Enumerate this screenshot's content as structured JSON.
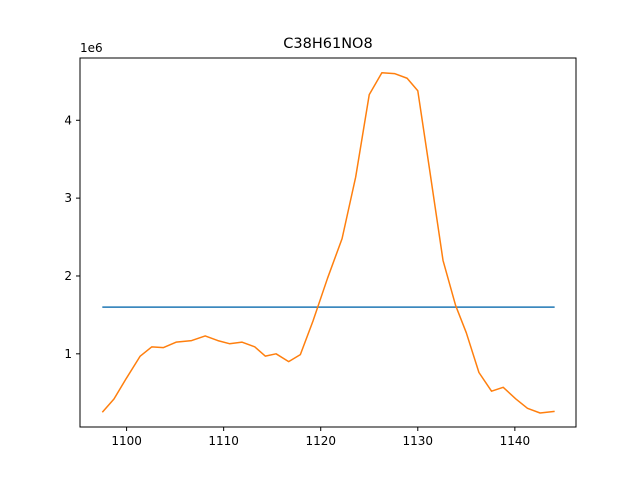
{
  "chart_data": {
    "type": "line",
    "title": "C38H61NO8",
    "xlabel": "",
    "ylabel": "",
    "y_offset_label": "1e6",
    "xlim": [
      1095.2,
      1146.3
    ],
    "ylim": [
      60000,
      4800000
    ],
    "grid": false,
    "x_ticks": [
      {
        "value": 1100,
        "label": "1100"
      },
      {
        "value": 1110,
        "label": "1110"
      },
      {
        "value": 1120,
        "label": "1120"
      },
      {
        "value": 1130,
        "label": "1130"
      },
      {
        "value": 1140,
        "label": "1140"
      }
    ],
    "y_ticks": [
      {
        "value": 1000000,
        "label": "1"
      },
      {
        "value": 2000000,
        "label": "2"
      },
      {
        "value": 3000000,
        "label": "3"
      },
      {
        "value": 4000000,
        "label": "4"
      }
    ],
    "series": [
      {
        "color": "#1f77b4",
        "x": [
          1097.5,
          1144.1
        ],
        "y": [
          1600000,
          1600000
        ]
      },
      {
        "color": "#ff7f0e",
        "x": [
          1097.5,
          1098.7,
          1099.9,
          1101.4,
          1102.6,
          1103.8,
          1105.1,
          1106.7,
          1108.1,
          1109.4,
          1110.6,
          1111.9,
          1113.2,
          1114.3,
          1115.4,
          1116.7,
          1117.9,
          1119.2,
          1120.7,
          1122.2,
          1123.6,
          1125.0,
          1126.3,
          1127.6,
          1128.9,
          1130.0,
          1131.2,
          1132.6,
          1133.9,
          1135.0,
          1136.3,
          1137.6,
          1138.8,
          1140.1,
          1141.3,
          1142.6,
          1144.1
        ],
        "y": [
          250000,
          420000,
          670000,
          970000,
          1090000,
          1080000,
          1150000,
          1170000,
          1230000,
          1170000,
          1130000,
          1150000,
          1090000,
          970000,
          1000000,
          900000,
          990000,
          1420000,
          1970000,
          2480000,
          3270000,
          4330000,
          4610000,
          4600000,
          4540000,
          4380000,
          3380000,
          2200000,
          1620000,
          1270000,
          760000,
          520000,
          570000,
          420000,
          300000,
          240000,
          260000
        ]
      }
    ]
  }
}
